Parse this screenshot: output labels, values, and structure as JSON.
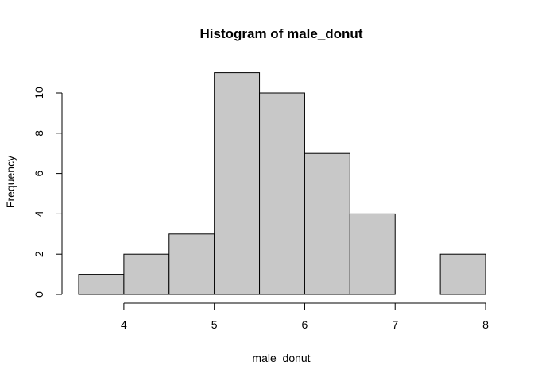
{
  "chart_data": {
    "type": "bar",
    "title": "Histogram of male_donut",
    "xlabel": "male_donut",
    "ylabel": "Frequency",
    "bins": [
      {
        "from": 3.5,
        "to": 4.0,
        "count": 1
      },
      {
        "from": 4.0,
        "to": 4.5,
        "count": 2
      },
      {
        "from": 4.5,
        "to": 5.0,
        "count": 3
      },
      {
        "from": 5.0,
        "to": 5.5,
        "count": 11
      },
      {
        "from": 5.5,
        "to": 6.0,
        "count": 10
      },
      {
        "from": 6.0,
        "to": 6.5,
        "count": 7
      },
      {
        "from": 6.5,
        "to": 7.0,
        "count": 4
      },
      {
        "from": 7.0,
        "to": 7.5,
        "count": 0
      },
      {
        "from": 7.5,
        "to": 8.0,
        "count": 2
      }
    ],
    "xticks": [
      4,
      5,
      6,
      7,
      8
    ],
    "yticks": [
      0,
      2,
      4,
      6,
      8,
      10
    ],
    "xlim": [
      3.5,
      8
    ],
    "ylim": [
      0,
      11
    ],
    "bar_color": "#c8c8c8",
    "edge_color": "#000000",
    "grid": false
  }
}
